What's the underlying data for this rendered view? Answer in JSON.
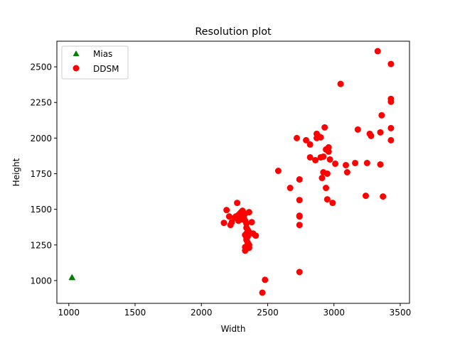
{
  "chart_data": {
    "type": "scatter",
    "title": "Resolution plot",
    "xlabel": "Width",
    "ylabel": "Height",
    "xlim": [
      910,
      3570
    ],
    "ylim": [
      840,
      2680
    ],
    "xticks": [
      1000,
      1500,
      2000,
      2500,
      3000,
      3500
    ],
    "yticks": [
      1000,
      1250,
      1500,
      1750,
      2000,
      2250,
      2500
    ],
    "grid": false,
    "legend_position": "top-left",
    "series": [
      {
        "name": "Mias",
        "marker": "triangle",
        "color": "#008000",
        "points": [
          [
            1024,
            1024
          ],
          [
            1024,
            1022
          ],
          [
            1026,
            1020
          ]
        ]
      },
      {
        "name": "DDSM",
        "marker": "circle",
        "color": "#ff0000",
        "points": [
          [
            3330,
            2610
          ],
          [
            3430,
            2520
          ],
          [
            3050,
            2380
          ],
          [
            3430,
            2275
          ],
          [
            3430,
            2255
          ],
          [
            3360,
            2160
          ],
          [
            3180,
            2060
          ],
          [
            3270,
            2030
          ],
          [
            3280,
            2015
          ],
          [
            3350,
            2040
          ],
          [
            3430,
            2070
          ],
          [
            3430,
            1985
          ],
          [
            2930,
            2075
          ],
          [
            2870,
            2030
          ],
          [
            2880,
            2015
          ],
          [
            2900,
            2005
          ],
          [
            2870,
            2000
          ],
          [
            2720,
            2000
          ],
          [
            2790,
            1985
          ],
          [
            2820,
            1955
          ],
          [
            2960,
            1935
          ],
          [
            2940,
            1920
          ],
          [
            2960,
            1905
          ],
          [
            2820,
            1865
          ],
          [
            2860,
            1845
          ],
          [
            2900,
            1865
          ],
          [
            2920,
            1870
          ],
          [
            2970,
            1850
          ],
          [
            3010,
            1820
          ],
          [
            3090,
            1810
          ],
          [
            3160,
            1825
          ],
          [
            3250,
            1825
          ],
          [
            3350,
            1815
          ],
          [
            2580,
            1770
          ],
          [
            2920,
            1760
          ],
          [
            2950,
            1750
          ],
          [
            3100,
            1760
          ],
          [
            2910,
            1720
          ],
          [
            2740,
            1710
          ],
          [
            2670,
            1650
          ],
          [
            2940,
            1650
          ],
          [
            3240,
            1595
          ],
          [
            3370,
            1590
          ],
          [
            2740,
            1565
          ],
          [
            2950,
            1570
          ],
          [
            2990,
            1545
          ],
          [
            2190,
            1495
          ],
          [
            2270,
            1545
          ],
          [
            2300,
            1480
          ],
          [
            2310,
            1490
          ],
          [
            2290,
            1470
          ],
          [
            2280,
            1460
          ],
          [
            2330,
            1470
          ],
          [
            2360,
            1480
          ],
          [
            2210,
            1450
          ],
          [
            2260,
            1450
          ],
          [
            2290,
            1440
          ],
          [
            2320,
            1440
          ],
          [
            2250,
            1440
          ],
          [
            2280,
            1420
          ],
          [
            2330,
            1420
          ],
          [
            2300,
            1430
          ],
          [
            2170,
            1405
          ],
          [
            2230,
            1410
          ],
          [
            2220,
            1390
          ],
          [
            2380,
            1410
          ],
          [
            2340,
            1400
          ],
          [
            2340,
            1370
          ],
          [
            2350,
            1355
          ],
          [
            2360,
            1340
          ],
          [
            2390,
            1330
          ],
          [
            2410,
            1315
          ],
          [
            2340,
            1330
          ],
          [
            2330,
            1320
          ],
          [
            2350,
            1310
          ],
          [
            2340,
            1300
          ],
          [
            2340,
            1285
          ],
          [
            2350,
            1265
          ],
          [
            2360,
            1250
          ],
          [
            2330,
            1235
          ],
          [
            2360,
            1230
          ],
          [
            2330,
            1210
          ],
          [
            2740,
            1455
          ],
          [
            2740,
            1450
          ],
          [
            2740,
            1390
          ],
          [
            2480,
            1005
          ],
          [
            2740,
            1060
          ],
          [
            2460,
            915
          ]
        ]
      }
    ]
  }
}
